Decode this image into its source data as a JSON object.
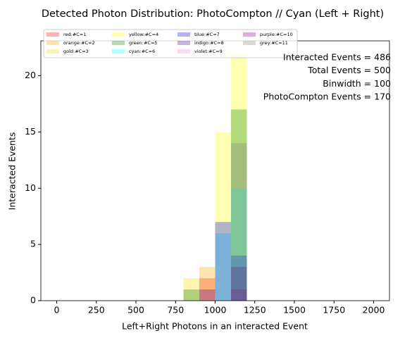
{
  "chart_data": {
    "type": "histogram",
    "title": "Detected Photon Distribution: PhotoCompton // Cyan (Left + Right)",
    "xlabel": "Left+Right Photons in an interacted Event",
    "ylabel": "Interacted Events",
    "annotations": [
      "Interacted Events = 486",
      "Total Events = 500",
      "Binwidth = 100",
      "PhotoCompton Events = 170"
    ],
    "bins": [
      800,
      900,
      1000,
      1100,
      1200
    ],
    "opacity": 0.3,
    "series": [
      {
        "name": "red:#C=1",
        "color": "red",
        "values": [
          0,
          2,
          0,
          0
        ]
      },
      {
        "name": "orange:#C=2",
        "color": "orange",
        "values": [
          0,
          3,
          0,
          0
        ]
      },
      {
        "name": "gold:#C=3",
        "color": "gold",
        "values": [
          2,
          0,
          0,
          0
        ]
      },
      {
        "name": "yellow:#C=4",
        "color": "yellow",
        "values": [
          0,
          0,
          15,
          22
        ]
      },
      {
        "name": "green:#C=5",
        "color": "green",
        "values": [
          1,
          0,
          0,
          17
        ]
      },
      {
        "name": "cyan:#C=6",
        "color": "cyan",
        "values": [
          0,
          0,
          6,
          10
        ]
      },
      {
        "name": "blue:#C=7",
        "color": "blue",
        "values": [
          0,
          0,
          7,
          4
        ]
      },
      {
        "name": "indigo:#C=8",
        "color": "indigo",
        "values": [
          0,
          1,
          0,
          3
        ]
      },
      {
        "name": "violet:#C=9",
        "color": "violet",
        "values": [
          0,
          0,
          0,
          0
        ]
      },
      {
        "name": "purple:#C=10",
        "color": "purple",
        "values": [
          0,
          0,
          0,
          1
        ]
      },
      {
        "name": "grey:#C=11",
        "color": "grey",
        "values": [
          0,
          0,
          0,
          14
        ]
      }
    ],
    "xlim": [
      -100,
      2100
    ],
    "ylim": [
      0,
      23.1
    ],
    "xticks": [
      0,
      250,
      500,
      750,
      1000,
      1250,
      1500,
      1750,
      2000
    ],
    "yticks": [
      0,
      5,
      10,
      15,
      20
    ],
    "legend_position": "upper left",
    "legend_columns": 4
  }
}
